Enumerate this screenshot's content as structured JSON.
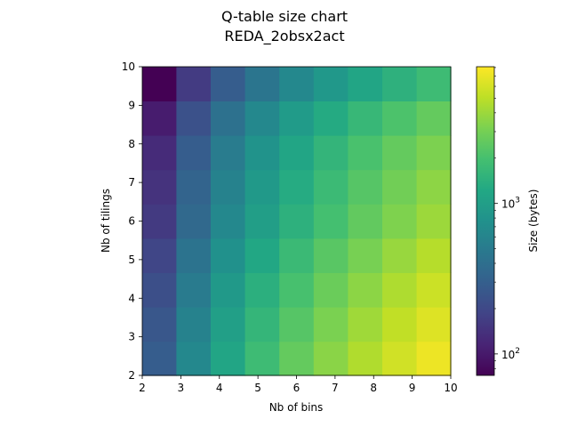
{
  "chart_data": {
    "type": "heatmap",
    "title": "Q-table size chart",
    "subtitle": "REDA_2obsx2act",
    "xlabel": "Nb of bins",
    "ylabel": "Nb of tilings",
    "colorbar_label": "Size (bytes)",
    "colormap": "viridis",
    "color_scale": "log",
    "color_range": [
      72,
      8100
    ],
    "x_range": [
      2,
      10
    ],
    "y_range": [
      2,
      10
    ],
    "x_ticks": [
      "2",
      "3",
      "4",
      "5",
      "6",
      "7",
      "8",
      "9",
      "10"
    ],
    "y_ticks": [
      "2",
      "3",
      "4",
      "5",
      "6",
      "7",
      "8",
      "9",
      "10"
    ],
    "colorbar_ticks": [
      {
        "value": 100,
        "base": "10",
        "exp": "2"
      },
      {
        "value": 1000,
        "base": "10",
        "exp": "3"
      }
    ],
    "x_centers": [
      2.44,
      3.33,
      4.22,
      5.11,
      6.0,
      6.89,
      7.78,
      8.67,
      9.56
    ],
    "y_centers": [
      2.44,
      3.33,
      4.22,
      5.11,
      6.0,
      6.89,
      7.78,
      8.67,
      9.56
    ],
    "row_order": "bottom-to-top",
    "values": [
      [
        288,
        648,
        1152,
        1800,
        2592,
        3528,
        4608,
        5832,
        7200
      ],
      [
        256,
        576,
        1024,
        1600,
        2304,
        3136,
        4096,
        5184,
        6400
      ],
      [
        224,
        504,
        896,
        1400,
        2016,
        2744,
        3584,
        4536,
        5600
      ],
      [
        192,
        432,
        768,
        1200,
        1728,
        2352,
        3072,
        3888,
        4800
      ],
      [
        160,
        360,
        640,
        1000,
        1440,
        1960,
        2560,
        3240,
        4000
      ],
      [
        144,
        324,
        576,
        900,
        1296,
        1764,
        2304,
        2916,
        3600
      ],
      [
        128,
        288,
        512,
        800,
        1152,
        1568,
        2048,
        2592,
        3200
      ],
      [
        104,
        234,
        416,
        650,
        936,
        1274,
        1664,
        2106,
        2600
      ],
      [
        72,
        162,
        288,
        450,
        648,
        882,
        1152,
        1458,
        1800
      ]
    ]
  }
}
